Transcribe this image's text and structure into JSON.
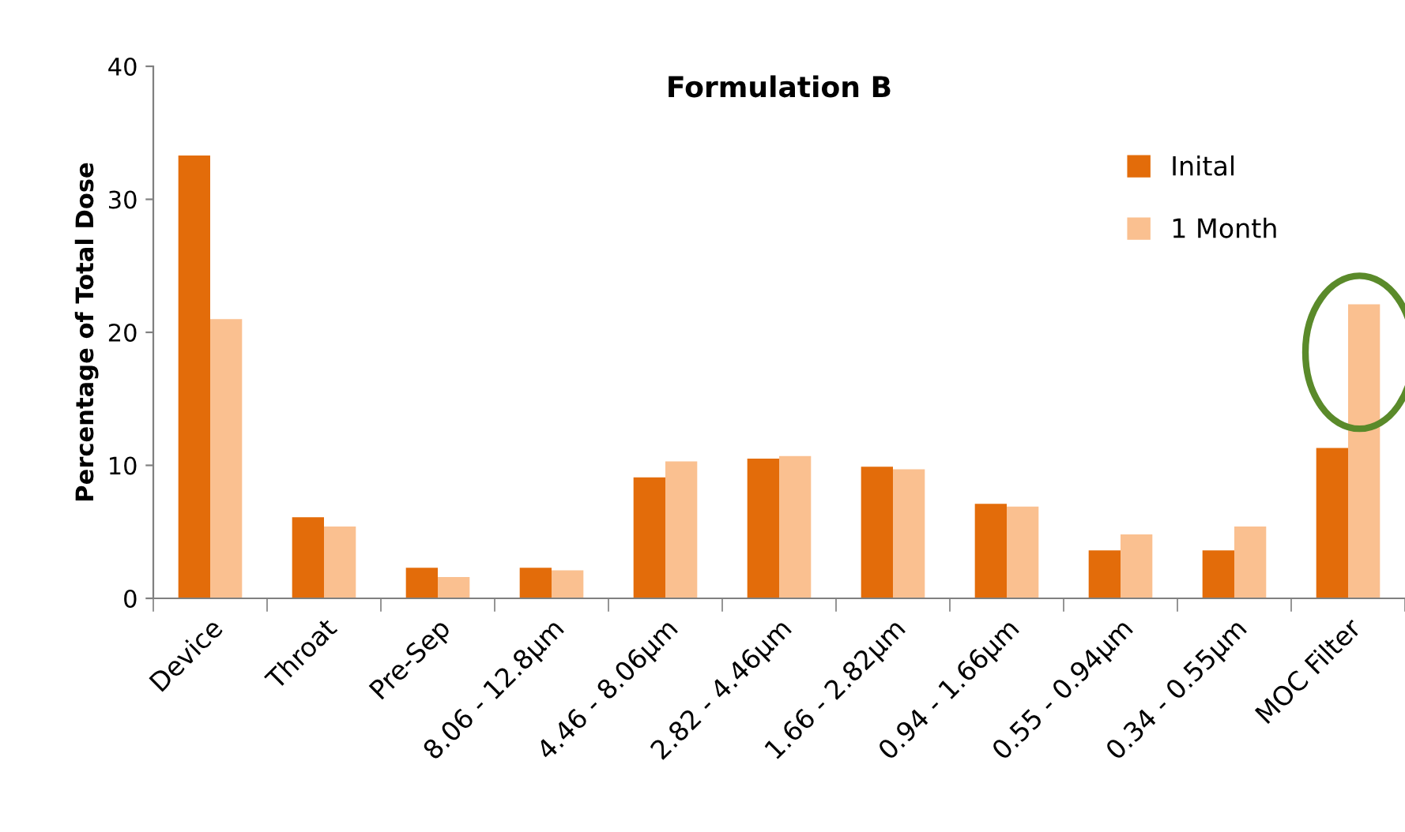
{
  "chart_data": {
    "type": "bar",
    "title": "Formulation B",
    "ylabel": "Percentage of Total Dose",
    "categories": [
      "Device",
      "Throat",
      "Pre-Sep",
      "8.06 - 12.8µm",
      "4.46 - 8.06µm",
      "2.82 - 4.46µm",
      "1.66 - 2.82µm",
      "0.94 - 1.66µm",
      "0.55 - 0.94µm",
      "0.34 - 0.55µm",
      "MOC Filter"
    ],
    "series": [
      {
        "name": "Inital",
        "color": "#e36c0a",
        "values": [
          33.3,
          6.1,
          2.3,
          2.3,
          9.1,
          10.5,
          9.9,
          7.1,
          3.6,
          3.6,
          11.3
        ]
      },
      {
        "name": "1 Month",
        "color": "#fac090",
        "values": [
          21.0,
          5.4,
          1.6,
          2.1,
          10.3,
          10.7,
          9.7,
          6.9,
          4.8,
          5.4,
          22.1
        ]
      }
    ],
    "ylim": [
      0,
      40
    ],
    "yticks": [
      0,
      10,
      20,
      30,
      40
    ],
    "grid": false,
    "legend": "right"
  }
}
